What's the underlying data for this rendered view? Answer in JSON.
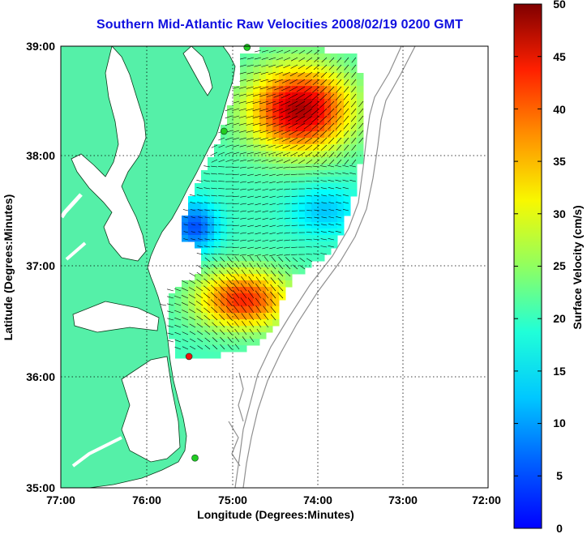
{
  "title": "Southern Mid-Atlantic Raw Velocities 2008/02/19 0200 GMT",
  "x_axis": {
    "label": "Longitude (Degrees:Minutes)",
    "ticks": [
      "77:00",
      "76:00",
      "75:00",
      "74:00",
      "73:00",
      "72:00"
    ]
  },
  "y_axis": {
    "label": "Latitude (Degrees:Minutes)",
    "ticks": [
      "39:00",
      "38:00",
      "37:00",
      "36:00",
      "35:00"
    ]
  },
  "colorbar": {
    "label": "Surface Velocity (cm/s)",
    "ticks": [
      "50",
      "45",
      "40",
      "35",
      "30",
      "25",
      "20",
      "15",
      "10",
      "5",
      "0"
    ],
    "min": 0,
    "max": 50
  },
  "colors": {
    "land": "#55f0a8",
    "ocean": "#ffffff",
    "title": "#1010e0",
    "grid": "#000000",
    "bathymetry": "#909090",
    "station_green": "#22cc22",
    "station_red": "#ee1111"
  },
  "chart_data": {
    "type": "heatmap",
    "xlim": [
      -77,
      -72
    ],
    "ylim": [
      35,
      39
    ],
    "grid": true,
    "stations": [
      {
        "lon": -74.82,
        "lat": 38.99,
        "color": "green"
      },
      {
        "lon": -75.09,
        "lat": 38.23,
        "color": "green"
      },
      {
        "lon": -75.5,
        "lat": 36.19,
        "color": "red"
      },
      {
        "lon": -75.43,
        "lat": 35.27,
        "color": "green"
      }
    ]
  }
}
